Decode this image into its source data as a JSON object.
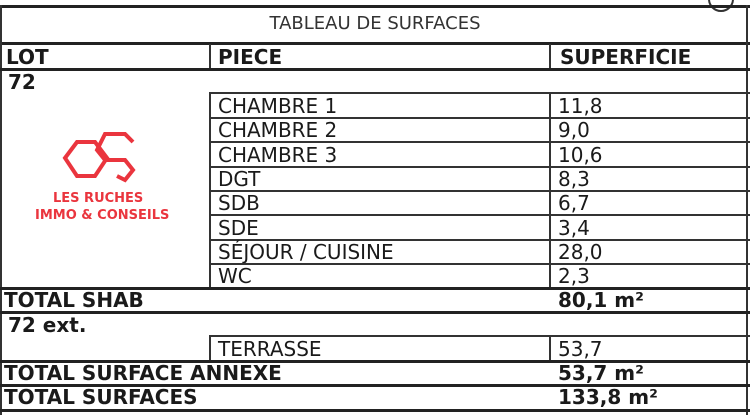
{
  "table": {
    "title": "TABLEAU DE SURFACES",
    "headers": {
      "lot": "LOT",
      "piece": "PIECE",
      "superficie": "SUPERFICIE"
    },
    "lot": "72",
    "rooms": [
      {
        "piece": "CHAMBRE 1",
        "superficie": "11,8"
      },
      {
        "piece": "CHAMBRE 2",
        "superficie": "9,0"
      },
      {
        "piece": "CHAMBRE 3",
        "superficie": "10,6"
      },
      {
        "piece": "DGT",
        "superficie": "8,3"
      },
      {
        "piece": "SDB",
        "superficie": "6,7"
      },
      {
        "piece": "SDE",
        "superficie": "3,4"
      },
      {
        "piece": "SÉJOUR / CUISINE",
        "superficie": "28,0"
      },
      {
        "piece": "WC",
        "superficie": "2,3"
      }
    ],
    "total_shab": {
      "label": "TOTAL SHAB",
      "value": "80,1 m²"
    },
    "lot_ext": "72 ext.",
    "ext_rooms": [
      {
        "piece": "TERRASSE",
        "superficie": "53,7"
      }
    ],
    "total_annexe": {
      "label": "TOTAL SURFACE ANNEXE",
      "value": "53,7 m²"
    },
    "total_surfaces": {
      "label": "TOTAL SURFACES",
      "value": "133,8 m²"
    }
  },
  "watermark": {
    "line1": "LES RUCHES",
    "line2": "IMMO & CONSEILS",
    "color": "#e8202a"
  }
}
